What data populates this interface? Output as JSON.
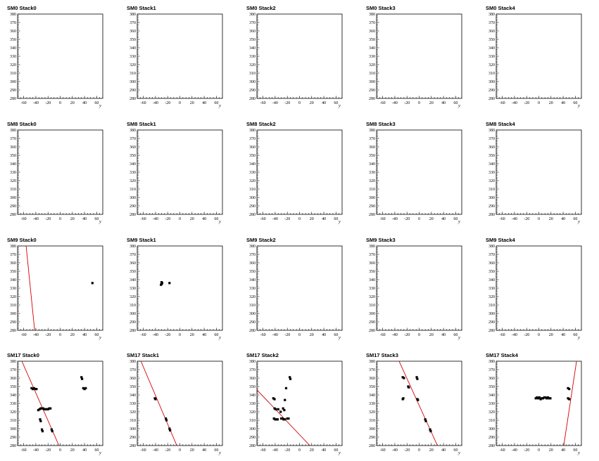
{
  "chart_data": {
    "type": "scatter",
    "xlabel": "y",
    "xlim": [
      -70,
      70
    ],
    "ylim": [
      280,
      380
    ],
    "x_ticks": [
      -60,
      -40,
      -20,
      0,
      20,
      40,
      60
    ],
    "y_ticks": [
      280,
      290,
      300,
      310,
      320,
      330,
      340,
      350,
      360,
      370,
      380
    ],
    "panels": [
      {
        "title": "SM0 Stack0",
        "points": [],
        "lines": []
      },
      {
        "title": "SM0 Stack1",
        "points": [],
        "lines": []
      },
      {
        "title": "SM0 Stack2",
        "points": [],
        "lines": []
      },
      {
        "title": "SM0 Stack3",
        "points": [],
        "lines": []
      },
      {
        "title": "SM0 Stack4",
        "points": [],
        "lines": []
      },
      {
        "title": "SM8 Stack0",
        "points": [],
        "lines": []
      },
      {
        "title": "SM8 Stack1",
        "points": [],
        "lines": []
      },
      {
        "title": "SM8 Stack2",
        "points": [],
        "lines": []
      },
      {
        "title": "SM8 Stack3",
        "points": [],
        "lines": []
      },
      {
        "title": "SM8 Stack4",
        "points": [],
        "lines": []
      },
      {
        "title": "SM9 Stack0",
        "points": [
          [
            53,
            336
          ]
        ],
        "lines": [
          [
            [
              -56,
              380
            ],
            [
              -42,
              280
            ]
          ]
        ]
      },
      {
        "title": "SM9 Stack1",
        "points": [
          [
            -31,
            334
          ],
          [
            -30,
            335
          ],
          [
            -29,
            336
          ],
          [
            -30,
            337
          ],
          [
            -17,
            336
          ]
        ],
        "lines": []
      },
      {
        "title": "SM9 Stack2",
        "points": [],
        "lines": []
      },
      {
        "title": "SM9 Stack3",
        "points": [],
        "lines": []
      },
      {
        "title": "SM9 Stack4",
        "points": [],
        "lines": []
      },
      {
        "title": "SM17 Stack0",
        "points": [
          [
            -47,
            348
          ],
          [
            -45,
            347
          ],
          [
            -43,
            348
          ],
          [
            -41,
            347
          ],
          [
            -39,
            347
          ],
          [
            -36,
            322
          ],
          [
            -34,
            323
          ],
          [
            -32,
            324
          ],
          [
            -30,
            324
          ],
          [
            -28,
            324
          ],
          [
            -26,
            323
          ],
          [
            -24,
            323
          ],
          [
            -22,
            323
          ],
          [
            -20,
            323
          ],
          [
            -18,
            324
          ],
          [
            -16,
            324
          ],
          [
            -33,
            311
          ],
          [
            -32,
            309
          ],
          [
            -30,
            299
          ],
          [
            -29,
            297
          ],
          [
            -14,
            299
          ],
          [
            -13,
            297
          ],
          [
            35,
            361
          ],
          [
            36,
            359
          ],
          [
            38,
            348
          ],
          [
            40,
            347
          ],
          [
            42,
            348
          ]
        ],
        "lines": [
          [
            [
              -63,
              380
            ],
            [
              -2,
              280
            ]
          ]
        ]
      },
      {
        "title": "SM17 Stack1",
        "points": [
          [
            -41,
            336
          ],
          [
            -40,
            335
          ],
          [
            -23,
            312
          ],
          [
            -22,
            310
          ],
          [
            -17,
            300
          ],
          [
            -16,
            298
          ]
        ],
        "lines": [
          [
            [
              -64,
              380
            ],
            [
              -5,
              280
            ]
          ]
        ]
      },
      {
        "title": "SM17 Stack2",
        "points": [
          [
            -43,
            336
          ],
          [
            -41,
            335
          ],
          [
            -41,
            324
          ],
          [
            -39,
            323
          ],
          [
            -35,
            323
          ],
          [
            -42,
            312
          ],
          [
            -40,
            311
          ],
          [
            -38,
            311
          ],
          [
            -36,
            311
          ],
          [
            -30,
            312
          ],
          [
            -28,
            312
          ],
          [
            -26,
            311
          ],
          [
            -24,
            311
          ],
          [
            -20,
            312
          ],
          [
            -18,
            312
          ],
          [
            -31,
            320
          ],
          [
            -27,
            324
          ],
          [
            -25,
            322
          ],
          [
            -24,
            334
          ],
          [
            -22,
            348
          ],
          [
            -16,
            361
          ],
          [
            -15,
            359
          ]
        ],
        "lines": [
          [
            [
              -70,
              346
            ],
            [
              17,
              280
            ]
          ]
        ]
      },
      {
        "title": "SM17 Stack3",
        "points": [
          [
            -27,
            335
          ],
          [
            -26,
            336
          ],
          [
            -27,
            361
          ],
          [
            -25,
            360
          ],
          [
            -18,
            350
          ],
          [
            -17,
            349
          ],
          [
            -4,
            361
          ],
          [
            -3,
            359
          ],
          [
            -3,
            335
          ],
          [
            -2,
            334
          ],
          [
            10,
            311
          ],
          [
            11,
            309
          ],
          [
            18,
            299
          ],
          [
            19,
            297
          ]
        ],
        "lines": [
          [
            [
              -33,
              380
            ],
            [
              30,
              280
            ]
          ]
        ]
      },
      {
        "title": "SM17 Stack4",
        "points": [
          [
            -5,
            336
          ],
          [
            -3,
            337
          ],
          [
            -1,
            336
          ],
          [
            1,
            337
          ],
          [
            3,
            335
          ],
          [
            5,
            336
          ],
          [
            7,
            336
          ],
          [
            9,
            337
          ],
          [
            11,
            337
          ],
          [
            13,
            336
          ],
          [
            15,
            337
          ],
          [
            17,
            336
          ],
          [
            19,
            336
          ],
          [
            48,
            336
          ],
          [
            50,
            335
          ],
          [
            48,
            348
          ],
          [
            50,
            347
          ]
        ],
        "lines": [
          [
            [
              41,
              280
            ],
            [
              62,
              380
            ]
          ]
        ]
      }
    ]
  }
}
